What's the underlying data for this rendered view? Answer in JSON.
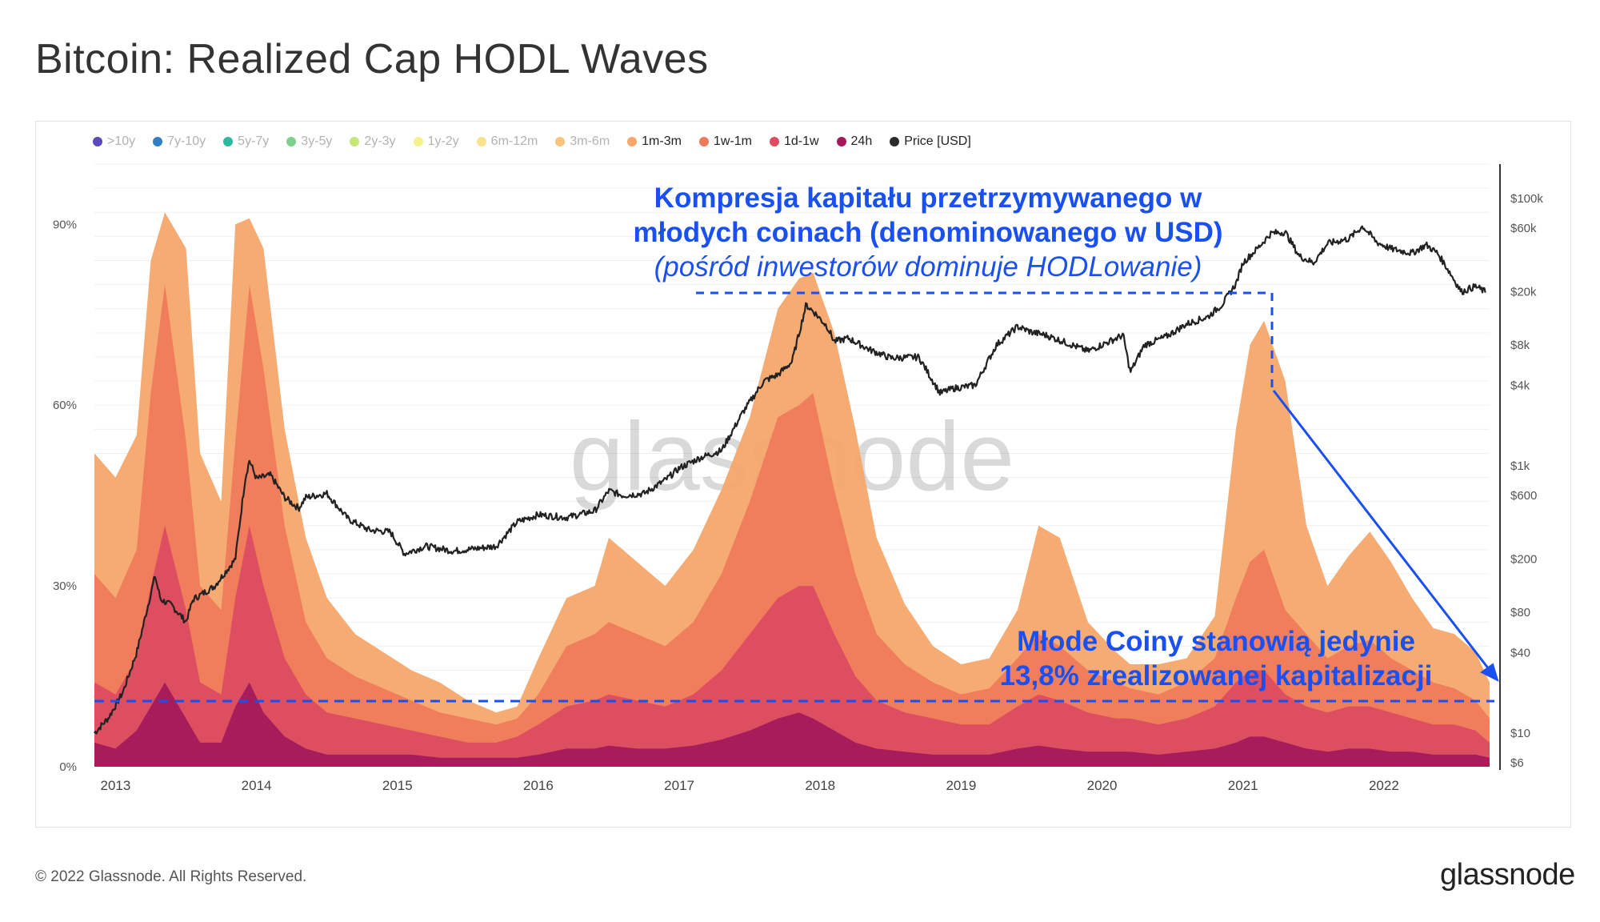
{
  "title": "Bitcoin: Realized Cap HODL Waves",
  "legend": [
    {
      "label": ">10y",
      "color": "#5b4ab8",
      "active": false
    },
    {
      "label": "7y-10y",
      "color": "#2f7fc0",
      "active": false
    },
    {
      "label": "5y-7y",
      "color": "#2fb8a0",
      "active": false
    },
    {
      "label": "3y-5y",
      "color": "#7fd08a",
      "active": false
    },
    {
      "label": "2y-3y",
      "color": "#c6e67a",
      "active": false
    },
    {
      "label": "1y-2y",
      "color": "#f5f28a",
      "active": false
    },
    {
      "label": "6m-12m",
      "color": "#fbe38e",
      "active": false
    },
    {
      "label": "3m-6m",
      "color": "#f9c47c",
      "active": false
    },
    {
      "label": "1m-3m",
      "color": "#f6a66a",
      "active": true
    },
    {
      "label": "1w-1m",
      "color": "#ef7a5a",
      "active": true
    },
    {
      "label": "1d-1w",
      "color": "#dc4c62",
      "active": true
    },
    {
      "label": "24h",
      "color": "#a3195b",
      "active": true
    },
    {
      "label": "Price [USD]",
      "color": "#2b2b2b",
      "active": true
    }
  ],
  "annotations": {
    "top_line1": "Kompresja kapitału przetrzymywanego w",
    "top_line2": "młodych coinach (denominowanego w USD)",
    "top_line3": "(pośród inwestorów dominuje HODLowanie)",
    "bottom_line1": "Młode Coiny stanowią jedynie",
    "bottom_line2": "13,8% zrealizowanej kapitalizacji",
    "color": "#1a4ff0"
  },
  "watermark": "glassnode",
  "footer": "© 2022 Glassnode. All Rights Reserved.",
  "brand": "glassnode",
  "chart_data": {
    "type": "area",
    "title": "Bitcoin: Realized Cap HODL Waves",
    "x_ticks": [
      "2013",
      "2014",
      "2015",
      "2016",
      "2017",
      "2018",
      "2019",
      "2020",
      "2021",
      "2022"
    ],
    "x_range": [
      2012.85,
      2022.75
    ],
    "y_left_ticks": [
      "0%",
      "30%",
      "60%",
      "90%"
    ],
    "y_left_range": [
      0,
      100
    ],
    "y_right_ticks": [
      "$6",
      "$10",
      "$40",
      "$80",
      "$200",
      "$600",
      "$1k",
      "$4k",
      "$8k",
      "$20k",
      "$60k",
      "$100k"
    ],
    "y_right_tick_values": [
      6,
      10,
      40,
      80,
      200,
      600,
      1000,
      4000,
      8000,
      20000,
      60000,
      100000
    ],
    "y_right_scale": "log",
    "x": [
      2012.85,
      2013.0,
      2013.15,
      2013.25,
      2013.35,
      2013.5,
      2013.6,
      2013.75,
      2013.85,
      2013.95,
      2014.05,
      2014.2,
      2014.35,
      2014.5,
      2014.7,
      2014.9,
      2015.1,
      2015.3,
      2015.5,
      2015.7,
      2015.85,
      2016.0,
      2016.2,
      2016.4,
      2016.5,
      2016.7,
      2016.9,
      2017.1,
      2017.3,
      2017.5,
      2017.7,
      2017.85,
      2017.95,
      2018.1,
      2018.25,
      2018.4,
      2018.6,
      2018.8,
      2019.0,
      2019.2,
      2019.4,
      2019.55,
      2019.7,
      2019.9,
      2020.1,
      2020.2,
      2020.4,
      2020.6,
      2020.8,
      2020.95,
      2021.05,
      2021.15,
      2021.3,
      2021.45,
      2021.6,
      2021.75,
      2021.9,
      2022.05,
      2022.2,
      2022.35,
      2022.5,
      2022.65,
      2022.75
    ],
    "series": [
      {
        "name": "1m-3m",
        "values": [
          52,
          48,
          55,
          84,
          92,
          86,
          52,
          44,
          90,
          91,
          86,
          56,
          38,
          28,
          22,
          19,
          16,
          14,
          11,
          9,
          10,
          18,
          28,
          30,
          38,
          34,
          30,
          36,
          46,
          58,
          76,
          81,
          82,
          72,
          56,
          38,
          27,
          20,
          17,
          18,
          26,
          40,
          38,
          24,
          19,
          17,
          17,
          18,
          25,
          56,
          70,
          74,
          64,
          40,
          30,
          35,
          39,
          34,
          28,
          23,
          22,
          19,
          14
        ]
      },
      {
        "name": "1w-1m",
        "values": [
          32,
          28,
          36,
          62,
          80,
          54,
          30,
          26,
          54,
          80,
          66,
          40,
          24,
          18,
          15,
          13,
          11,
          9,
          8,
          7,
          8,
          12,
          20,
          22,
          24,
          22,
          20,
          24,
          32,
          44,
          58,
          60,
          62,
          46,
          32,
          22,
          17,
          14,
          12,
          13,
          18,
          22,
          20,
          16,
          14,
          13,
          12,
          14,
          18,
          28,
          34,
          36,
          26,
          22,
          18,
          20,
          21,
          18,
          16,
          14,
          13,
          11,
          8
        ]
      },
      {
        "name": "1d-1w",
        "values": [
          14,
          12,
          18,
          30,
          40,
          26,
          14,
          12,
          28,
          40,
          30,
          18,
          12,
          9,
          8,
          7,
          6,
          5,
          4,
          4,
          5,
          7,
          10,
          11,
          12,
          11,
          10,
          12,
          16,
          22,
          28,
          30,
          30,
          22,
          15,
          11,
          9,
          8,
          7,
          7,
          10,
          12,
          11,
          9,
          8,
          8,
          7,
          8,
          10,
          14,
          16,
          16,
          12,
          10,
          9,
          10,
          10,
          9,
          8,
          7,
          7,
          6,
          4
        ]
      },
      {
        "name": "24h",
        "values": [
          4,
          3,
          6,
          10,
          14,
          8,
          4,
          4,
          10,
          14,
          9,
          5,
          3,
          2,
          2,
          2,
          2,
          1.5,
          1.5,
          1.5,
          1.5,
          2,
          3,
          3,
          3.5,
          3,
          3,
          3.5,
          4.5,
          6,
          8,
          9,
          8,
          6,
          4,
          3,
          2.5,
          2,
          2,
          2,
          3,
          3.5,
          3,
          2.5,
          2.5,
          2.5,
          2,
          2.5,
          3,
          4,
          5,
          5,
          4,
          3,
          2.5,
          3,
          3,
          2.5,
          2.5,
          2,
          2,
          2,
          1.5
        ]
      }
    ],
    "price": {
      "name": "Price [USD]",
      "x": [
        2012.85,
        2012.95,
        2013.05,
        2013.15,
        2013.25,
        2013.28,
        2013.32,
        2013.4,
        2013.5,
        2013.55,
        2013.7,
        2013.85,
        2013.92,
        2013.95,
        2014.0,
        2014.1,
        2014.2,
        2014.3,
        2014.35,
        2014.5,
        2014.65,
        2014.8,
        2014.95,
        2015.05,
        2015.2,
        2015.4,
        2015.55,
        2015.7,
        2015.85,
        2016.0,
        2016.2,
        2016.4,
        2016.5,
        2016.6,
        2016.75,
        2016.9,
        2017.0,
        2017.15,
        2017.3,
        2017.45,
        2017.6,
        2017.7,
        2017.8,
        2017.9,
        2017.96,
        2018.05,
        2018.1,
        2018.2,
        2018.35,
        2018.5,
        2018.7,
        2018.85,
        2018.95,
        2019.1,
        2019.25,
        2019.4,
        2019.5,
        2019.6,
        2019.75,
        2019.9,
        2020.05,
        2020.15,
        2020.2,
        2020.3,
        2020.45,
        2020.6,
        2020.75,
        2020.85,
        2020.95,
        2021.0,
        2021.1,
        2021.2,
        2021.3,
        2021.4,
        2021.5,
        2021.6,
        2021.75,
        2021.85,
        2021.95,
        2022.05,
        2022.2,
        2022.3,
        2022.38,
        2022.45,
        2022.55,
        2022.65,
        2022.72
      ],
      "values": [
        10,
        13,
        20,
        40,
        110,
        150,
        100,
        90,
        68,
        100,
        125,
        200,
        800,
        1100,
        800,
        850,
        580,
        480,
        580,
        620,
        400,
        330,
        320,
        220,
        250,
        230,
        240,
        250,
        380,
        430,
        410,
        460,
        650,
        600,
        620,
        780,
        960,
        1150,
        1300,
        2500,
        4300,
        4800,
        6000,
        16000,
        14000,
        11000,
        8500,
        9000,
        7400,
        6400,
        6500,
        3500,
        3800,
        4000,
        8000,
        11000,
        10000,
        9500,
        8300,
        7200,
        8500,
        9500,
        5000,
        8000,
        9200,
        11500,
        13000,
        16000,
        23000,
        33000,
        42000,
        55000,
        56000,
        37000,
        33000,
        46000,
        50000,
        62000,
        47000,
        42000,
        39000,
        45000,
        39000,
        30000,
        20000,
        22000,
        20000
      ]
    }
  }
}
